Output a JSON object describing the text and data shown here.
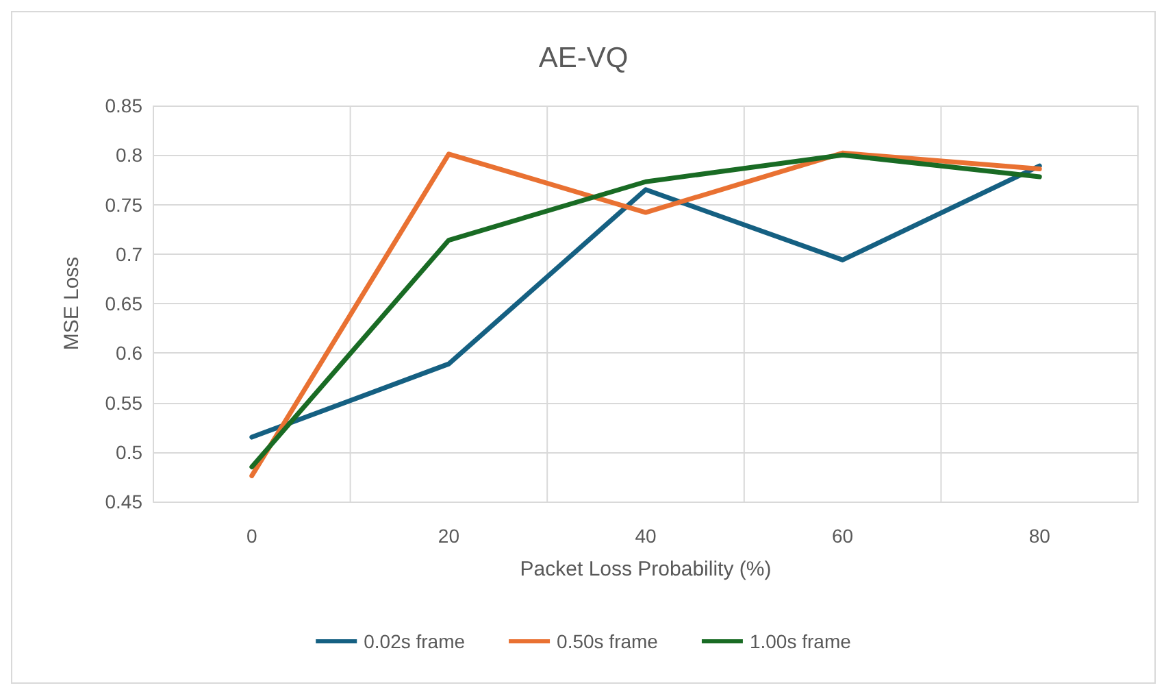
{
  "chart_data": {
    "type": "line",
    "title": "AE-VQ",
    "xlabel": "Packet Loss Probability (%)",
    "ylabel": "MSE Loss",
    "x": [
      0,
      20,
      40,
      60,
      80
    ],
    "series": [
      {
        "name": "0.02s frame",
        "color": "#156082",
        "values": [
          0.515,
          0.589,
          0.765,
          0.694,
          0.789
        ]
      },
      {
        "name": "0.50s frame",
        "color": "#e97132",
        "values": [
          0.476,
          0.801,
          0.742,
          0.802,
          0.786
        ]
      },
      {
        "name": "1.00s frame",
        "color": "#196b24",
        "values": [
          0.485,
          0.714,
          0.773,
          0.8,
          0.778
        ]
      }
    ],
    "xlim": [
      -10,
      90
    ],
    "xticks": [
      {
        "value": -10,
        "label": null
      },
      0,
      {
        "value": 10,
        "label": null
      },
      20,
      {
        "value": 30,
        "label": null
      },
      40,
      {
        "value": 50,
        "label": null
      },
      60,
      {
        "value": 70,
        "label": null
      },
      80,
      {
        "value": 90,
        "label": null
      }
    ],
    "ylim": [
      0.45,
      0.85
    ],
    "yticks": [
      0.45,
      0.5,
      0.55,
      0.6,
      0.65,
      0.7,
      0.75,
      0.8,
      0.85
    ],
    "grid": true,
    "legend": "bottom",
    "marker": "none",
    "line_style": "solid"
  }
}
